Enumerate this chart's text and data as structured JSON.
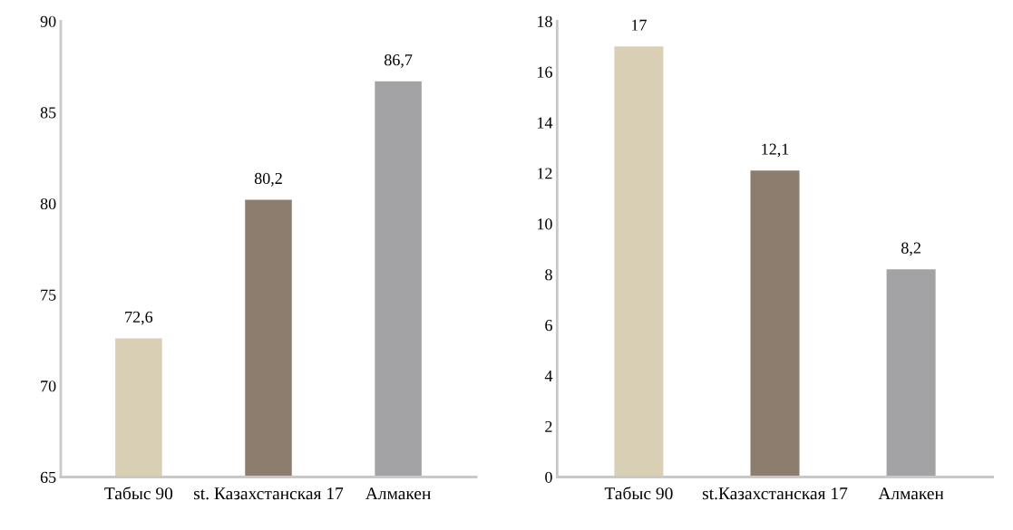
{
  "chart_data": [
    {
      "type": "bar",
      "categories": [
        "Табыс 90",
        "st. Казахстанская 17",
        "Алмакен"
      ],
      "values": [
        72.6,
        80.2,
        86.7
      ],
      "colors": [
        "#d9cfb4",
        "#8c7d6e",
        "#a3a3a6"
      ],
      "ylim": [
        65,
        90
      ],
      "yticks": [
        65,
        70,
        75,
        80,
        85,
        90
      ],
      "data_labels": true,
      "value_labels": [
        "72,6",
        "80,2",
        "86,7"
      ],
      "grid": false,
      "legend": false
    },
    {
      "type": "bar",
      "categories": [
        "Табыс 90",
        "st.Казахстанская 17",
        "Алмакен"
      ],
      "values": [
        17,
        12.1,
        8.2
      ],
      "colors": [
        "#d9cfb4",
        "#8c7d6e",
        "#a3a3a6"
      ],
      "ylim": [
        0,
        18
      ],
      "yticks": [
        0,
        2,
        4,
        6,
        8,
        10,
        12,
        14,
        16,
        18
      ],
      "data_labels": true,
      "value_labels": [
        "17",
        "12,1",
        "8,2"
      ],
      "grid": false,
      "legend": false
    }
  ]
}
